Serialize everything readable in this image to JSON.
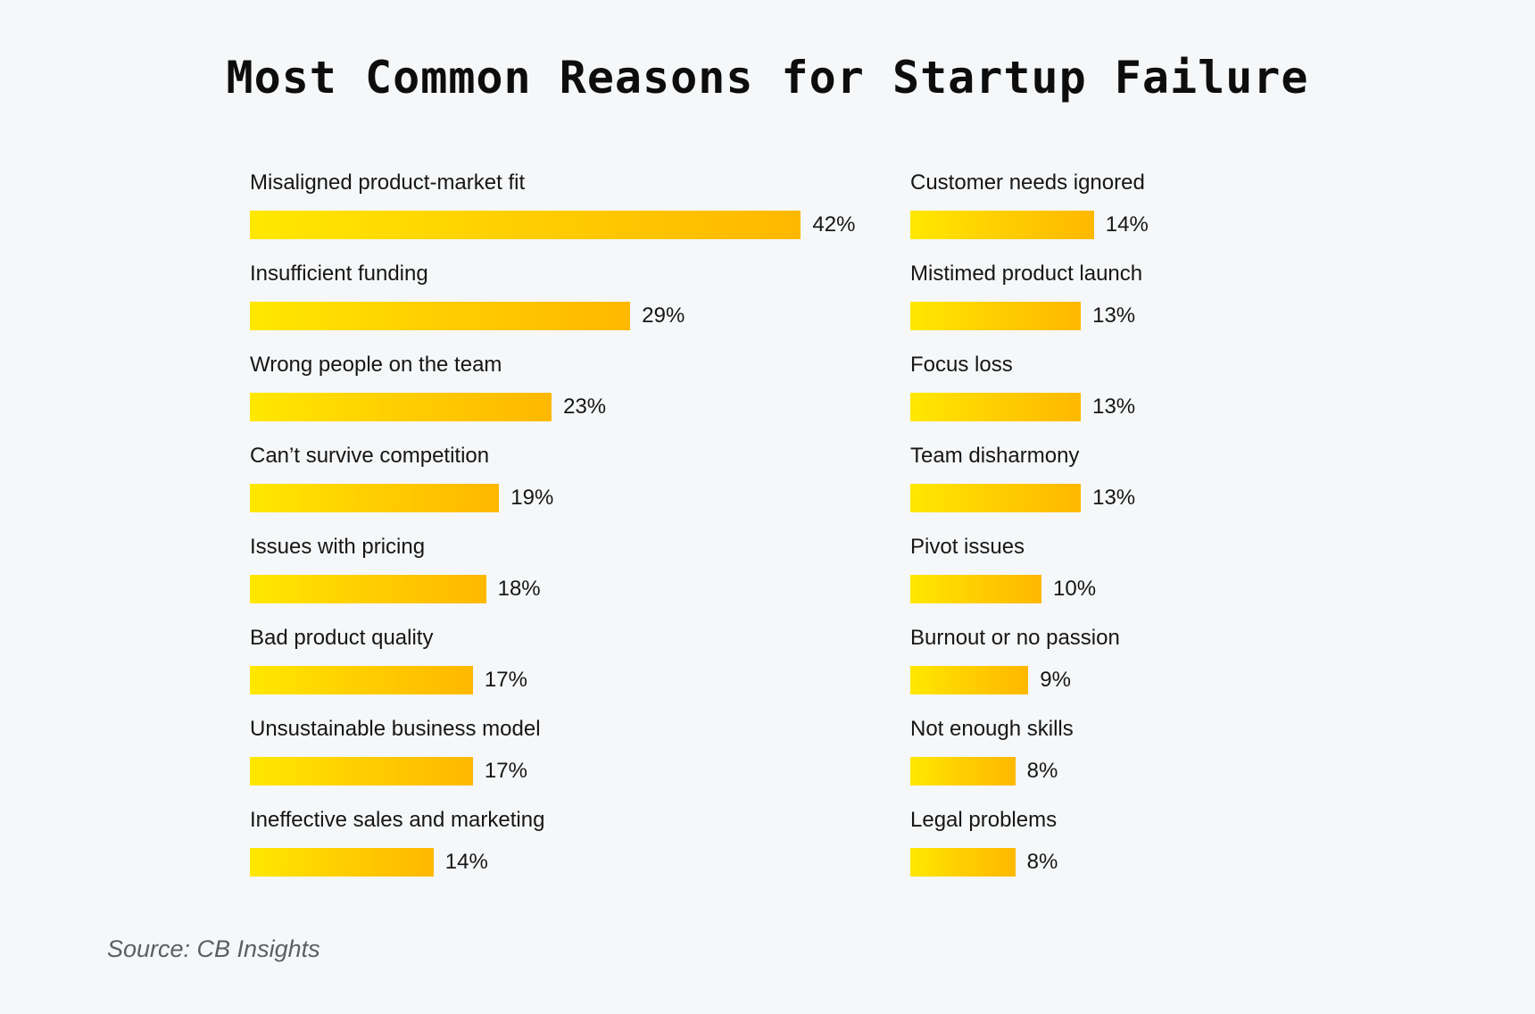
{
  "title": "Most Common Reasons for Startup Failure",
  "source": "Source: CB Insights",
  "colors": {
    "bar_start": "#ffe800",
    "bar_end": "#ffb800",
    "background": "#f5f7f8"
  },
  "chart_data": {
    "type": "bar",
    "orientation": "horizontal",
    "title": "Most Common Reasons for Startup Failure",
    "unit": "%",
    "xlim": [
      0,
      42
    ],
    "columns": [
      {
        "categories": [
          "Misaligned product-market fit",
          "Insufficient funding",
          "Wrong people on the team",
          "Can’t survive competition",
          "Issues with pricing",
          "Bad product quality",
          "Unsustainable business model",
          "Ineffective sales and marketing"
        ],
        "values": [
          42,
          29,
          23,
          19,
          18,
          17,
          17,
          14
        ],
        "labels": [
          "42%",
          "29%",
          "23%",
          "19%",
          "18%",
          "17%",
          "17%",
          "14%"
        ]
      },
      {
        "categories": [
          "Customer needs ignored",
          "Mistimed product launch",
          "Focus loss",
          "Team disharmony",
          "Pivot issues",
          "Burnout or no passion",
          "Not enough skills",
          "Legal problems"
        ],
        "values": [
          14,
          13,
          13,
          13,
          10,
          9,
          8,
          8
        ],
        "labels": [
          "14%",
          "13%",
          "13%",
          "13%",
          "10%",
          "9%",
          "8%",
          "8%"
        ]
      }
    ]
  }
}
